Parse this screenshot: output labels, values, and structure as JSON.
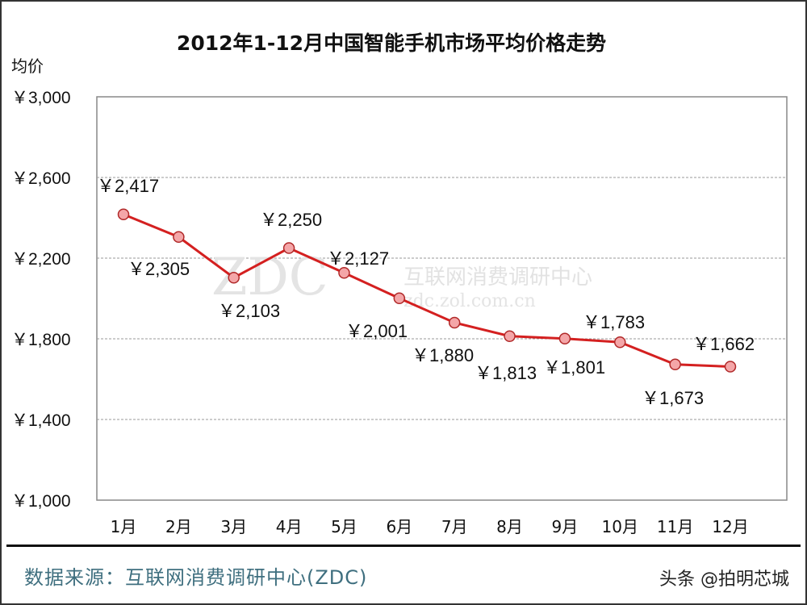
{
  "chart_data": {
    "type": "line",
    "title": "2012年1-12月中国智能手机市场平均价格走势",
    "ylabel": "均价",
    "xlabel": "",
    "categories": [
      "1月",
      "2月",
      "3月",
      "4月",
      "5月",
      "6月",
      "7月",
      "8月",
      "9月",
      "10月",
      "11月",
      "12月"
    ],
    "values": [
      2417,
      2305,
      2103,
      2250,
      2127,
      2001,
      1880,
      1813,
      1801,
      1783,
      1673,
      1662
    ],
    "data_labels": [
      "￥2,417",
      "￥2,305",
      "￥2,103",
      "￥2,250",
      "￥2,127",
      "￥2,001",
      "￥1,880",
      "￥1,813",
      "￥1,801",
      "￥1,783",
      "￥1,673",
      "￥1,662"
    ],
    "ylim": [
      1000,
      3000
    ],
    "yticks": [
      1000,
      1400,
      1800,
      2200,
      2600,
      3000
    ],
    "ytick_labels": [
      "￥1,000",
      "￥1,400",
      "￥1,800",
      "￥2,200",
      "￥2,600",
      "￥3,000"
    ],
    "grid": "horizontal dashed",
    "line_color": "#d42020",
    "marker_color": "#f4a6a8"
  },
  "watermark": {
    "logo": "ZDC",
    "name": "互联网消费调研中心",
    "url": "zdc.zol.com.cn"
  },
  "footer": {
    "source": "数据来源：互联网消费调研中心(ZDC)",
    "credit": "头条 @拍明芯城"
  }
}
